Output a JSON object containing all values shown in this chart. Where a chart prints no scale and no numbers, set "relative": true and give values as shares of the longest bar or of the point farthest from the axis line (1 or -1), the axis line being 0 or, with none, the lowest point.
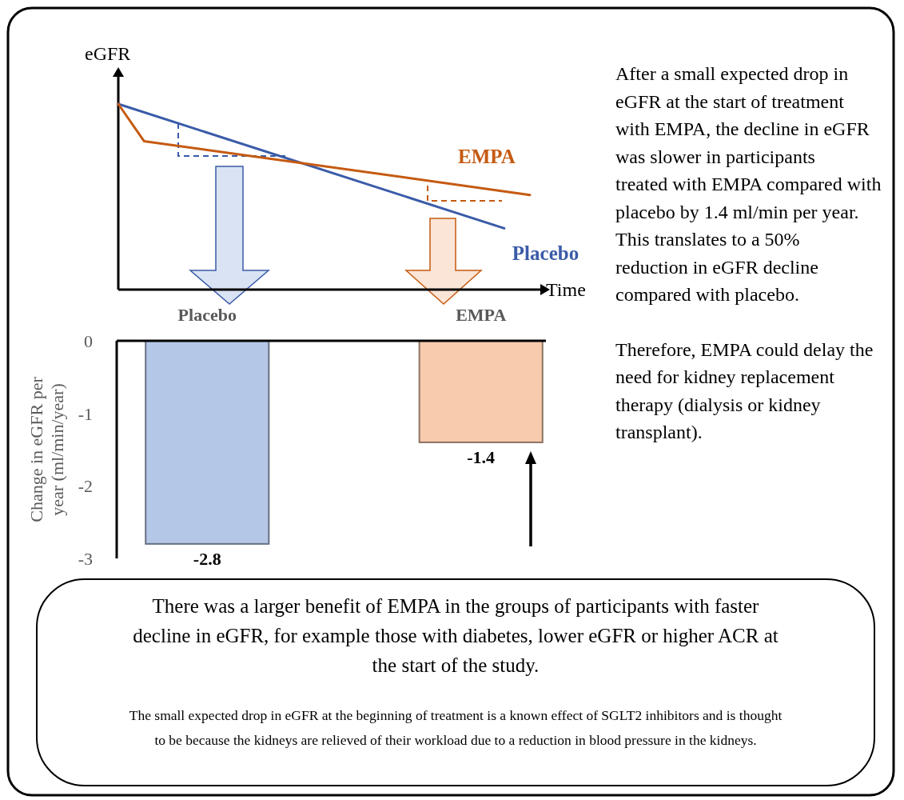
{
  "chart_data": [
    {
      "type": "line",
      "relative": true,
      "xlabel": "Time",
      "ylabel": "eGFR",
      "marker": "none",
      "line_style": "solid",
      "categories": [
        null,
        null,
        null,
        null,
        null,
        null,
        null,
        null,
        null,
        null,
        null,
        null,
        null,
        null,
        null,
        null,
        null
      ],
      "series": [
        {
          "name": "Placebo",
          "color": "#3a5ba8",
          "values": [
            1,
            null,
            null,
            null,
            null,
            null,
            null,
            null,
            null,
            null,
            null,
            null,
            null,
            null,
            null,
            0.33,
            null
          ]
        },
        {
          "name": "EMPA",
          "color": "#c55a11",
          "values": [
            1,
            0.8,
            null,
            null,
            null,
            null,
            null,
            null,
            null,
            null,
            null,
            null,
            null,
            null,
            null,
            null,
            0.51
          ]
        }
      ]
    },
    {
      "type": "bar",
      "categories": [
        "Placebo",
        "EMPA"
      ],
      "values": [
        -2.8,
        -1.4
      ],
      "colors": [
        "#b4c7e7",
        "#f8cbad"
      ],
      "ylim": [
        -3,
        0
      ],
      "yticks": [
        0,
        -1,
        -2,
        -3
      ],
      "ylabel": "Change in eGFR per year (ml/min/year)",
      "data_labels": true,
      "grid": false
    },
    {
      "type": "other",
      "annotations": [
        "After a small expected drop in eGFR at the start of treatment with EMPA, the decline in eGFR was slower in participants treated with EMPA compared with placebo by 1.4 ml/min per year. This translates to a 50% reduction in eGFR decline compared with placebo.",
        "Therefore, EMPA could delay the need for kidney replacement therapy (dialysis or kidney transplant).",
        "There was a larger benefit of EMPA in the groups of participants with faster decline in eGFR, for example those with diabetes, lower eGFR or higher ACR at the start of the study.",
        "The small expected drop in eGFR at the beginning of treatment is a known effect of SGLT2 inhibitors and is thought to be because the kidneys are relieved of their workload due to a reduction in blood pressure in the kidneys."
      ]
    }
  ]
}
